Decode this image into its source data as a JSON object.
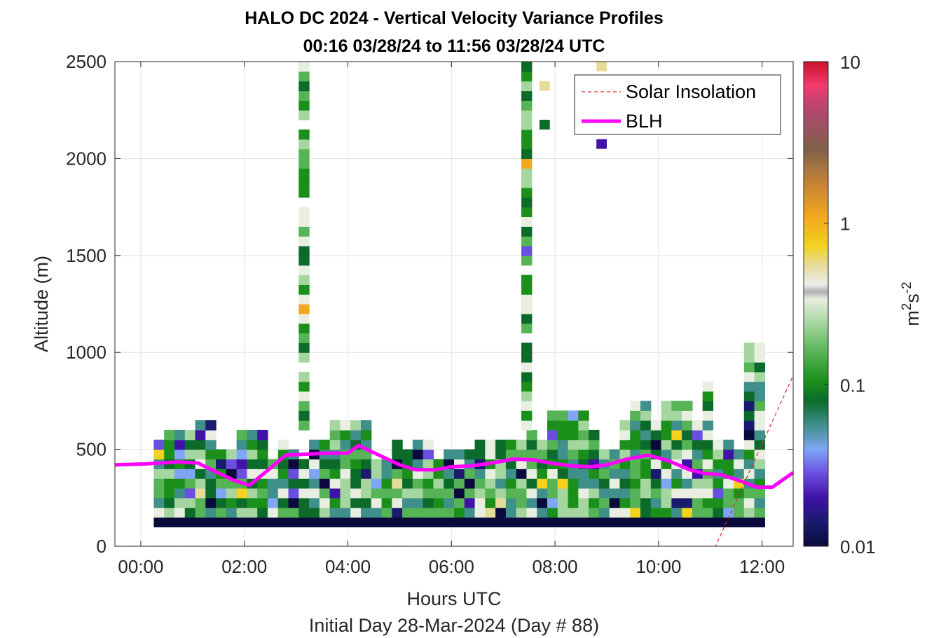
{
  "chart_data": {
    "type": "heatmap",
    "title_line1": "HALO DC 2024 - Vertical Velocity Variance Profiles",
    "title_line2": "00:16 03/28/24 to 11:56 03/28/24  UTC",
    "xlabel": "Hours UTC",
    "xlabel_sub": "Initial Day 28-Mar-2024 (Day # 88)",
    "ylabel": "Altitude (m)",
    "colorbar_label": "m2s-2",
    "colorbar_label_parts": {
      "base1": "m",
      "exp1": "2",
      "base2": "s",
      "exp2": "-2"
    },
    "xlim": [
      -0.5,
      12.6
    ],
    "ylim": [
      0,
      2500
    ],
    "xticks": [
      0,
      2,
      4,
      6,
      8,
      10,
      12
    ],
    "xtick_labels": [
      "00:00",
      "02:00",
      "04:00",
      "06:00",
      "08:00",
      "10:00",
      "12:00"
    ],
    "yticks": [
      0,
      500,
      1000,
      1500,
      2000,
      2500
    ],
    "ytick_labels": [
      "0",
      "500",
      "1000",
      "1500",
      "2000",
      "2500"
    ],
    "color_scale": "log",
    "clim": [
      0.01,
      10
    ],
    "colorbar_ticks": [
      0.01,
      0.1,
      1,
      10
    ],
    "colorbar_tick_labels": [
      "0.01",
      "0.1",
      "1",
      "10"
    ],
    "grid": true,
    "legend_position": "top-right",
    "legend": [
      "Solar Insolation",
      "BLH"
    ],
    "colors": {
      "blh": "#ff00ff",
      "solar": "#d62728",
      "colormap": [
        "#0a0a3c",
        "#1a1a6e",
        "#4012a8",
        "#6a4ee0",
        "#7fa6f5",
        "#3f8f8a",
        "#0c6b2b",
        "#1a8f1a",
        "#56b356",
        "#a6d6a0",
        "#e8eee0",
        "#ececec",
        "#e6dc9a",
        "#f2d21e",
        "#f2a81e",
        "#c48236",
        "#80604a",
        "#b04870",
        "#f23a70",
        "#c81228"
      ]
    },
    "series": [
      {
        "name": "BLH",
        "x": [
          -0.5,
          0.1,
          0.7,
          1.1,
          1.4,
          1.8,
          2.1,
          2.4,
          2.8,
          3.2,
          3.6,
          4.0,
          4.2,
          4.6,
          5.0,
          5.3,
          5.7,
          6.0,
          6.4,
          6.8,
          7.2,
          7.6,
          7.9,
          8.3,
          8.7,
          9.0,
          9.4,
          9.8,
          10.2,
          10.6,
          10.9,
          11.2,
          11.6,
          11.9,
          12.2,
          12.6
        ],
        "y": [
          420,
          425,
          435,
          430,
          390,
          340,
          315,
          380,
          470,
          475,
          480,
          480,
          520,
          470,
          420,
          395,
          395,
          410,
          415,
          430,
          450,
          445,
          430,
          415,
          410,
          420,
          450,
          470,
          440,
          395,
          375,
          370,
          335,
          305,
          305,
          380
        ]
      },
      {
        "name": "Solar Insolation",
        "x": [
          -0.5,
          11.1,
          12.6
        ],
        "y": [
          0,
          0,
          880
        ]
      }
    ],
    "data_cells": "Profile curtain of vertical velocity variance per time column and altitude bin; mostly 0.03–0.3 m2 s-2 below ~600 m, with tall columns near 03:05 and 07:25 reaching 2500 m and a lowest row near 0.01 across 00:15–12:00."
  }
}
